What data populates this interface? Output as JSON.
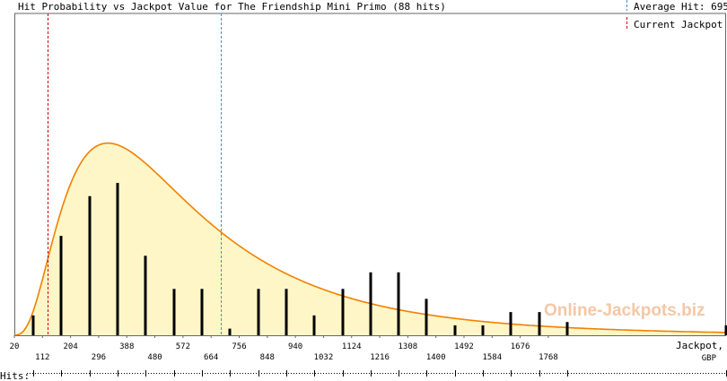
{
  "chart_data": {
    "type": "bar",
    "title": "Hit Probability vs Jackpot Value for The Friendship Mini Primo (88 hits)",
    "xlabel": "Jackpot,",
    "xunit": "GBP",
    "xlim": [
      20,
      2350
    ],
    "xticks_top": [
      20,
      204,
      388,
      572,
      756,
      940,
      1124,
      1308,
      1492,
      1676
    ],
    "xticks_bottom": [
      112,
      296,
      480,
      664,
      848,
      1032,
      1216,
      1400,
      1584,
      1768
    ],
    "bars": {
      "x": [
        82,
        174,
        266,
        358,
        450,
        542,
        634,
        726,
        818,
        910,
        1002,
        1094,
        1186,
        1278,
        1370,
        1462,
        1554,
        1646,
        1738,
        1830,
        2350
      ],
      "values": [
        3,
        15,
        21,
        23,
        12,
        7,
        7,
        1,
        7,
        7,
        3,
        7,
        9.5,
        9.5,
        5.5,
        1.5,
        1.5,
        3.5,
        3.5,
        2,
        1.5
      ]
    },
    "curve_ymax": 29,
    "average_hit": 695,
    "current_jackpot": 130,
    "legend": [
      {
        "label": "Average Hit: 695",
        "color": "#4a90c8",
        "style": "dashed"
      },
      {
        "label": "Current Jackpot",
        "color": "#cc0000",
        "style": "dashed"
      }
    ],
    "hits_label": "Hits:",
    "watermark": "Online-Jackpots.biz",
    "colors": {
      "curve": "#f08000",
      "fill": "#fff6c8",
      "bar": "#000000",
      "average_line": "#4a90c8",
      "current_line": "#cc0000",
      "watermark": "#f5c7a6"
    }
  }
}
